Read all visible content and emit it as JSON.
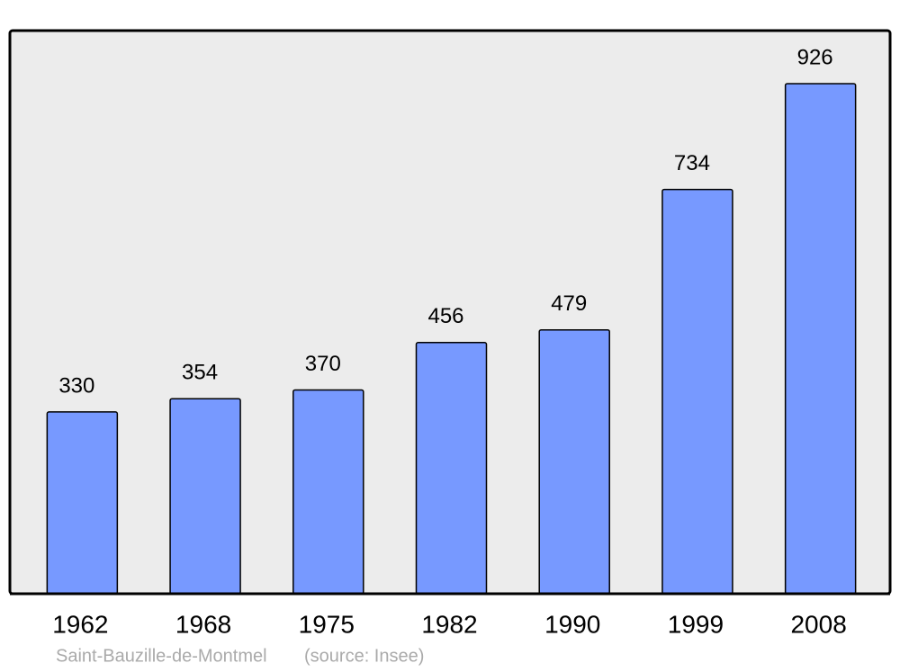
{
  "chart_data": {
    "type": "bar",
    "categories": [
      "1962",
      "1968",
      "1975",
      "1982",
      "1990",
      "1999",
      "2008"
    ],
    "values": [
      330,
      354,
      370,
      456,
      479,
      734,
      926
    ],
    "color": "#7799ff",
    "caption": "Saint-Bauzille-de-Montmel",
    "source": "(source: Insee)"
  }
}
